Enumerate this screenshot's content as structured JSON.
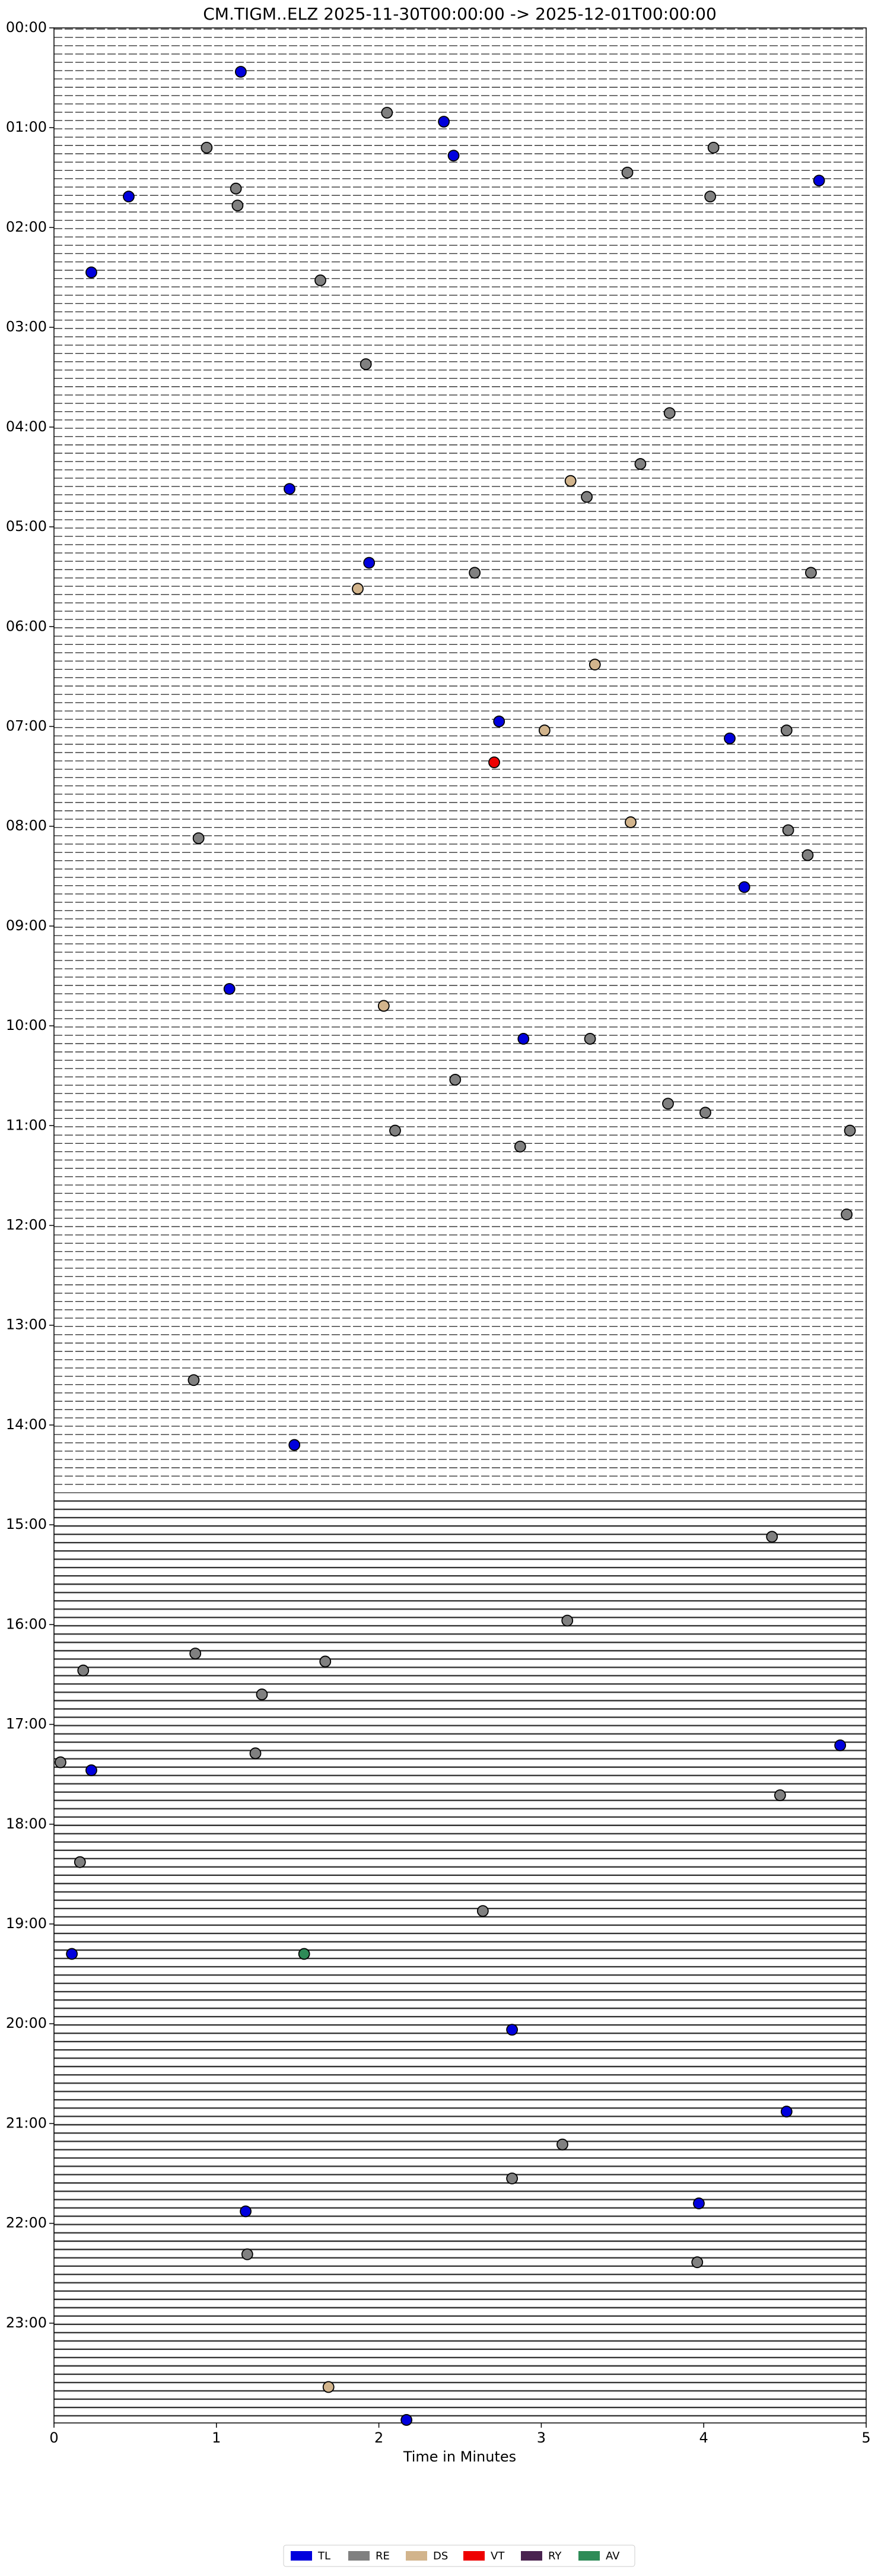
{
  "chart_data": {
    "type": "scatter",
    "title": "CM.TIGM..ELZ  2025-11-30T00:00:00 -> 2025-12-01T00:00:00",
    "x_label": "Time in Minutes",
    "xlim": [
      0,
      5
    ],
    "xticks": [
      0,
      1,
      2,
      3,
      4,
      5
    ],
    "ylim": [
      24,
      0
    ],
    "yticks": [
      {
        "value": 0,
        "label": "00:00"
      },
      {
        "value": 1,
        "label": "01:00"
      },
      {
        "value": 2,
        "label": "02:00"
      },
      {
        "value": 3,
        "label": "03:00"
      },
      {
        "value": 4,
        "label": "04:00"
      },
      {
        "value": 5,
        "label": "05:00"
      },
      {
        "value": 6,
        "label": "06:00"
      },
      {
        "value": 7,
        "label": "07:00"
      },
      {
        "value": 8,
        "label": "08:00"
      },
      {
        "value": 9,
        "label": "09:00"
      },
      {
        "value": 10,
        "label": "10:00"
      },
      {
        "value": 11,
        "label": "11:00"
      },
      {
        "value": 12,
        "label": "12:00"
      },
      {
        "value": 13,
        "label": "13:00"
      },
      {
        "value": 14,
        "label": "14:00"
      },
      {
        "value": 15,
        "label": "15:00"
      },
      {
        "value": 16,
        "label": "16:00"
      },
      {
        "value": 17,
        "label": "17:00"
      },
      {
        "value": 18,
        "label": "18:00"
      },
      {
        "value": 19,
        "label": "19:00"
      },
      {
        "value": 20,
        "label": "20:00"
      },
      {
        "value": 21,
        "label": "21:00"
      },
      {
        "value": 22,
        "label": "22:00"
      },
      {
        "value": 23,
        "label": "23:00"
      }
    ],
    "series": [
      {
        "name": "TL",
        "color": "#0000dd",
        "x": [
          1.15,
          2.4,
          2.46,
          4.71,
          0.46,
          0.23,
          1.45,
          1.94,
          2.74,
          4.16,
          4.25,
          1.08,
          2.89,
          1.48,
          4.84,
          0.23,
          0.11,
          2.82,
          4.51,
          3.97,
          1.18,
          2.17
        ],
        "values": [
          0.44,
          0.94,
          1.28,
          1.53,
          1.69,
          2.45,
          4.62,
          5.36,
          6.95,
          7.12,
          8.61,
          9.63,
          10.13,
          14.2,
          17.21,
          17.46,
          19.3,
          20.06,
          20.88,
          21.8,
          21.88,
          23.97
        ]
      },
      {
        "name": "RE",
        "color": "#808080",
        "x": [
          2.05,
          0.94,
          4.06,
          3.53,
          1.12,
          4.04,
          1.13,
          1.64,
          1.92,
          3.79,
          3.61,
          3.28,
          2.59,
          4.66,
          4.51,
          0.89,
          4.52,
          4.64,
          3.3,
          2.47,
          3.78,
          4.01,
          2.1,
          2.87,
          4.9,
          4.88,
          0.86,
          4.42,
          3.16,
          0.87,
          1.67,
          0.18,
          1.28,
          0.04,
          1.24,
          4.47,
          0.16,
          2.64,
          3.13,
          2.82,
          1.19,
          3.96
        ],
        "values": [
          0.85,
          1.2,
          1.2,
          1.45,
          1.61,
          1.69,
          1.78,
          2.53,
          3.37,
          3.86,
          4.37,
          4.7,
          5.46,
          5.46,
          7.04,
          8.12,
          8.04,
          8.29,
          10.13,
          10.54,
          10.78,
          10.87,
          11.05,
          11.21,
          11.05,
          11.89,
          13.55,
          15.12,
          15.96,
          16.29,
          16.37,
          16.46,
          16.7,
          17.38,
          17.29,
          17.71,
          18.38,
          18.87,
          21.21,
          21.55,
          22.31,
          22.39
        ]
      },
      {
        "name": "DS",
        "color": "#d2b48c",
        "x": [
          3.18,
          1.87,
          3.33,
          3.02,
          3.55,
          2.03,
          1.69
        ],
        "values": [
          4.54,
          5.62,
          6.38,
          7.04,
          7.96,
          9.8,
          23.64
        ]
      },
      {
        "name": "VT",
        "color": "#ee0000",
        "x": [
          2.71
        ],
        "values": [
          7.36
        ]
      },
      {
        "name": "RY",
        "color": "#4a2350",
        "x": [],
        "values": []
      },
      {
        "name": "AV",
        "color": "#2e8b57",
        "x": [
          1.54
        ],
        "values": [
          19.3
        ]
      }
    ]
  }
}
